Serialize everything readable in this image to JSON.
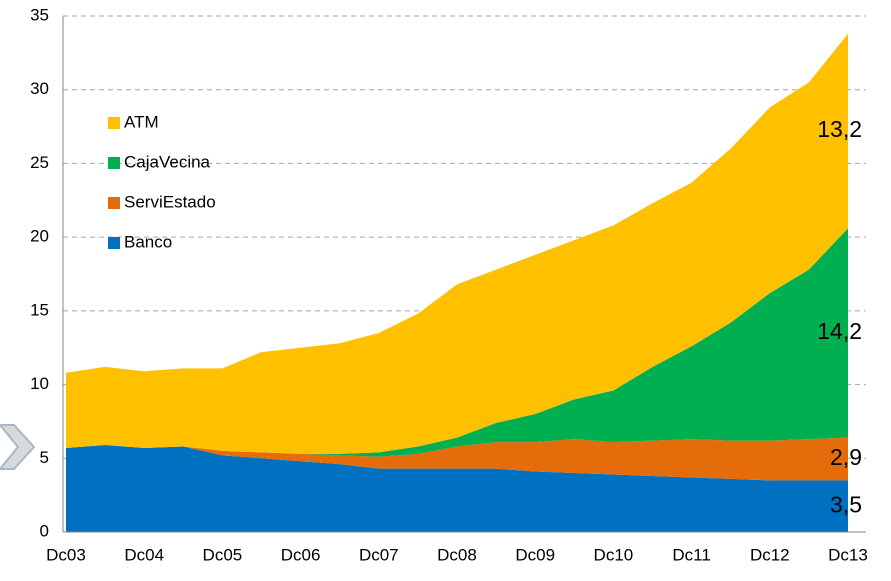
{
  "chart_data": {
    "type": "stacked_area",
    "categories": [
      "Dc03",
      null,
      "Dc04",
      null,
      "Dc05",
      null,
      "Dc06",
      null,
      "Dc07",
      null,
      "Dc08",
      null,
      "Dc09",
      null,
      "Dc10",
      null,
      "Dc11",
      null,
      "Dc12",
      null,
      "Dc13"
    ],
    "series": [
      {
        "name": "Banco",
        "color": "#0070c0",
        "label_color": "#ffffff",
        "values": [
          5.7,
          5.9,
          5.7,
          5.8,
          5.2,
          5.0,
          4.8,
          4.6,
          4.3,
          4.3,
          4.3,
          4.3,
          4.1,
          4.0,
          3.9,
          3.8,
          3.7,
          3.6,
          3.5,
          3.5,
          3.5
        ],
        "value_labels": [
          null,
          null,
          null,
          null,
          null,
          null,
          null,
          null,
          null,
          null,
          null,
          null,
          null,
          null,
          null,
          null,
          null,
          null,
          null,
          null,
          "3,5"
        ]
      },
      {
        "name": "ServiEstado",
        "color": "#e46c0a",
        "label_color": "#ffffff",
        "values": [
          0,
          0,
          0,
          0,
          0.3,
          0.4,
          0.5,
          0.6,
          0.8,
          1.0,
          1.5,
          1.8,
          2.0,
          2.3,
          2.2,
          2.4,
          2.6,
          2.6,
          2.7,
          2.8,
          2.9
        ],
        "value_labels": [
          null,
          null,
          null,
          null,
          null,
          null,
          null,
          null,
          null,
          null,
          null,
          null,
          null,
          null,
          null,
          null,
          null,
          null,
          null,
          null,
          "2,9"
        ]
      },
      {
        "name": "CajaVecina",
        "color": "#00b050",
        "label_color": "#000000",
        "values": [
          0,
          0,
          0,
          0,
          0,
          0,
          0,
          0.1,
          0.3,
          0.5,
          0.6,
          1.3,
          1.9,
          2.7,
          3.5,
          5.0,
          6.3,
          8.0,
          10.0,
          11.5,
          14.2
        ],
        "value_labels": [
          null,
          null,
          null,
          null,
          null,
          null,
          null,
          null,
          null,
          null,
          null,
          null,
          null,
          null,
          null,
          null,
          null,
          null,
          null,
          null,
          "14,2"
        ]
      },
      {
        "name": "ATM",
        "color": "#ffc000",
        "label_color": "#000000",
        "values": [
          5.1,
          5.3,
          5.2,
          5.3,
          5.6,
          6.8,
          7.2,
          7.5,
          8.1,
          9.0,
          10.4,
          10.4,
          10.8,
          10.8,
          11.2,
          11.1,
          11.1,
          11.8,
          12.6,
          12.7,
          13.2
        ],
        "value_labels": [
          null,
          null,
          null,
          null,
          null,
          null,
          null,
          null,
          null,
          null,
          null,
          null,
          null,
          null,
          null,
          null,
          null,
          null,
          null,
          null,
          "13,2"
        ]
      }
    ],
    "ylim": [
      0,
      35
    ],
    "yticks": [
      0,
      5,
      10,
      15,
      20,
      25,
      30,
      35
    ],
    "grid": true,
    "legend": "upper left"
  }
}
